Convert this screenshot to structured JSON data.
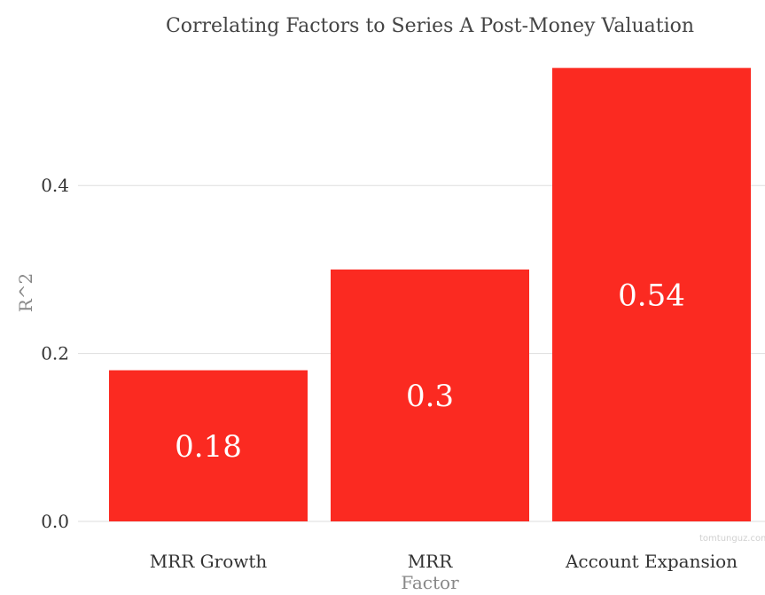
{
  "chart_data": {
    "type": "bar",
    "title": "Correlating Factors to Series A Post-Money Valuation",
    "xlabel": "Factor",
    "ylabel": "R^2",
    "categories": [
      "MRR Growth",
      "MRR",
      "Account Expansion"
    ],
    "values": [
      0.18,
      0.3,
      0.54
    ],
    "data_labels": [
      "0.18",
      "0.3",
      "0.54"
    ],
    "ylim": [
      0,
      0.547
    ],
    "yticks": [
      0.0,
      0.2,
      0.4
    ],
    "ytick_labels": [
      "0.0",
      "0.2",
      "0.4"
    ],
    "grid": true,
    "legend": "none",
    "bar_color": "#fb2a21"
  },
  "watermark": "tomtunguz.com"
}
